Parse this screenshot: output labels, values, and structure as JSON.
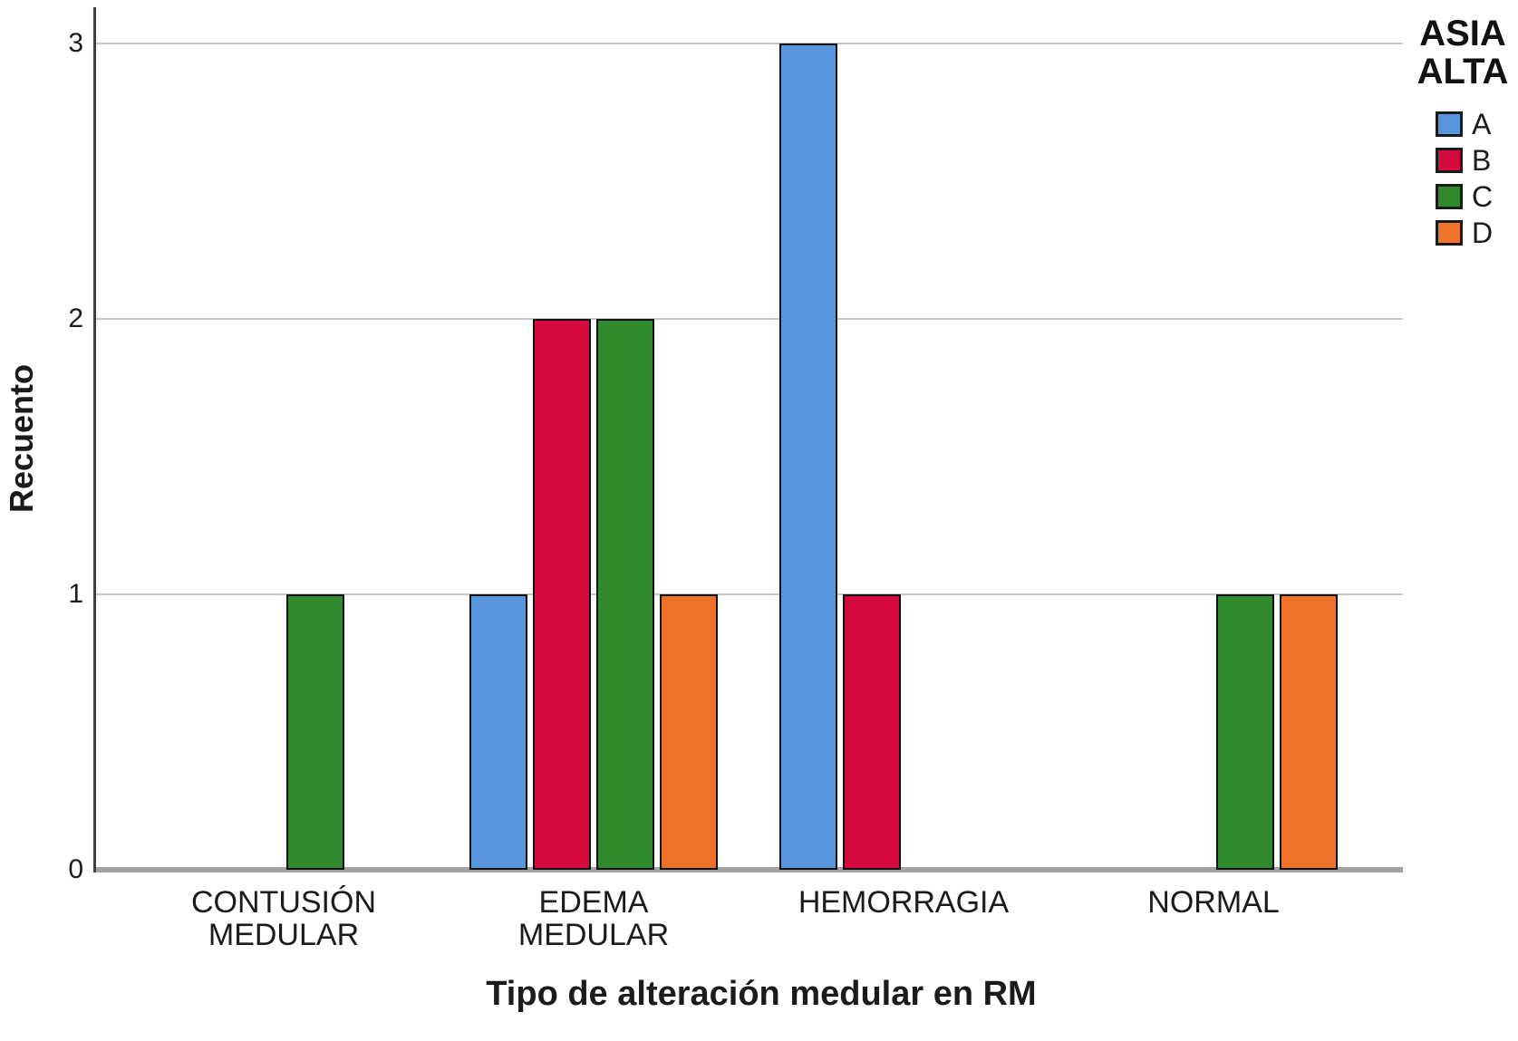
{
  "chart_data": {
    "type": "bar",
    "title": "",
    "xlabel": "Tipo de alteración medular en RM",
    "ylabel": "Recuento",
    "categories": [
      "CONTUSIÓN\nMEDULAR",
      "EDEMA\nMEDULAR",
      "HEMORRAGIA",
      "NORMAL"
    ],
    "series": [
      {
        "name": "A",
        "color": "#5796DC",
        "values": [
          0,
          1,
          3,
          0
        ]
      },
      {
        "name": "B",
        "color": "#D50A3C",
        "values": [
          0,
          2,
          1,
          0
        ]
      },
      {
        "name": "C",
        "color": "#2E8A2B",
        "values": [
          1,
          2,
          0,
          1
        ]
      },
      {
        "name": "D",
        "color": "#F0712A",
        "values": [
          0,
          1,
          0,
          1
        ]
      }
    ],
    "y_ticks": [
      0,
      1,
      2,
      3
    ],
    "ylim": [
      0,
      3.15
    ],
    "grid": "horizontal",
    "legend_title": "ASIA\nALTA",
    "legend_position": "top-right",
    "colors": {
      "bar_border": "#111111",
      "gridline": "#c8c8c8",
      "baseline": "#a3a3a3",
      "axis_line": "#404040",
      "text": "#1b1b1b"
    }
  }
}
